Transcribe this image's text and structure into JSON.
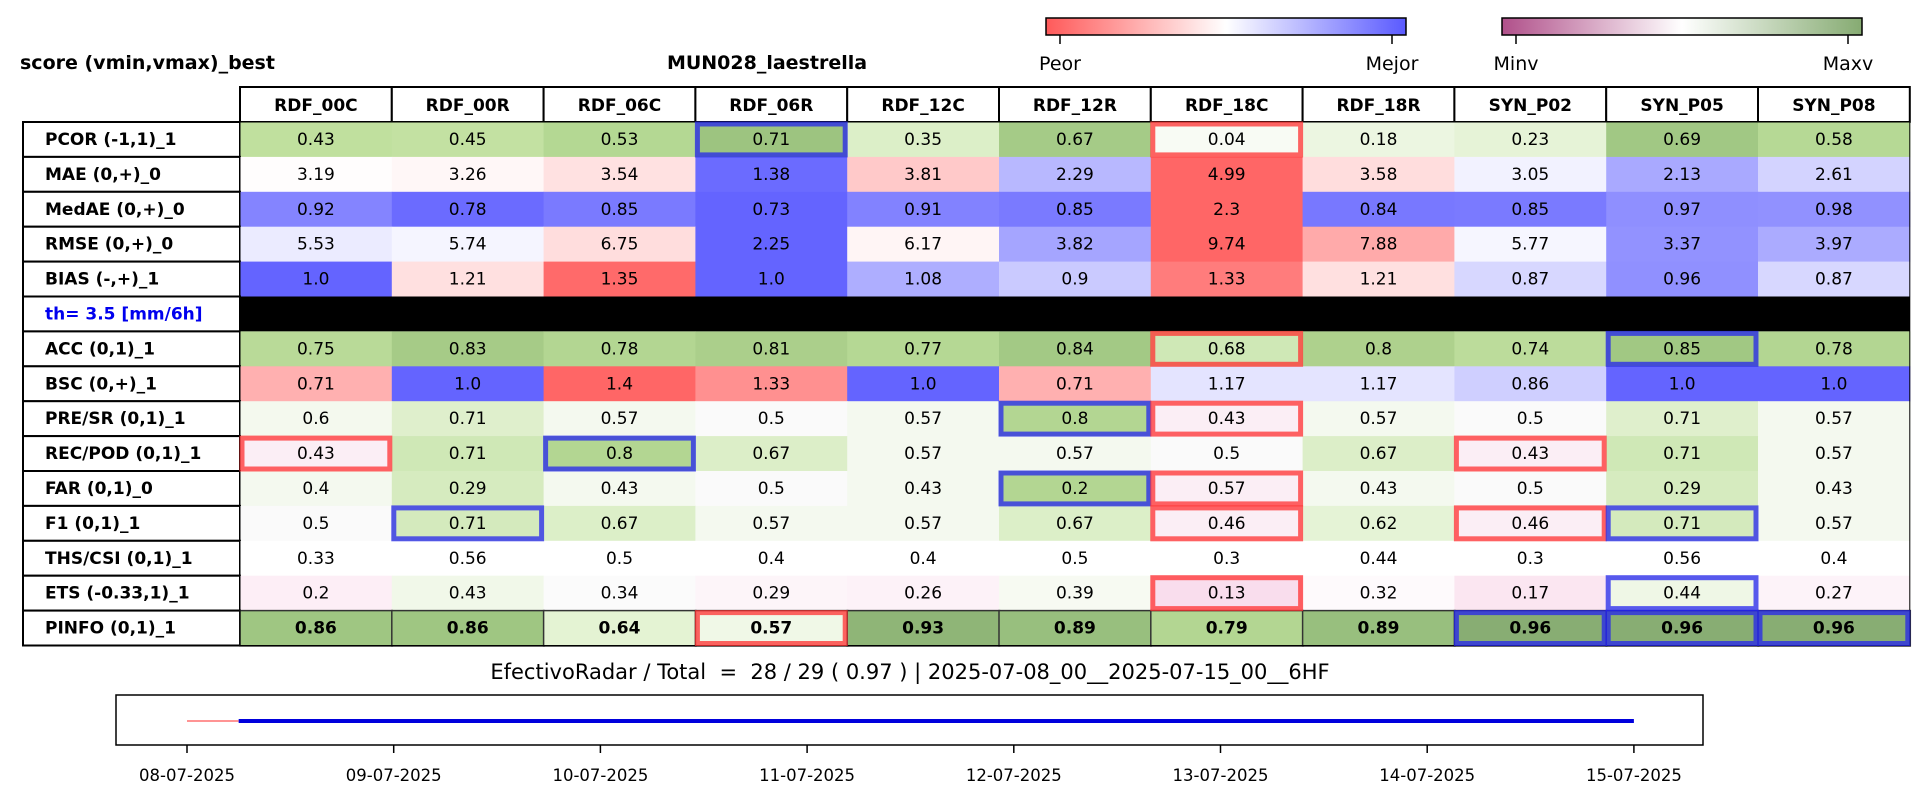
{
  "header": {
    "left_title": "score (vmin,vmax)_best",
    "center_title": "MUN028_laestrella"
  },
  "colorbar_score": {
    "low_label": "Peor",
    "high_label": "Mejor",
    "colors": [
      "#ff5a5a",
      "#ffffff",
      "#5a5aff"
    ]
  },
  "colorbar_minmax": {
    "low_label": "Minv",
    "high_label": "Maxv",
    "colors": [
      "#b0508a",
      "#ffffff",
      "#86ab72"
    ]
  },
  "chart_data": {
    "type": "table",
    "columns": [
      "RDF_00C",
      "RDF_00R",
      "RDF_06C",
      "RDF_06R",
      "RDF_12C",
      "RDF_12R",
      "RDF_18C",
      "RDF_18R",
      "SYN_P02",
      "SYN_P05",
      "SYN_P08"
    ],
    "rows": [
      {
        "label": "PCOR (-1,1)_1",
        "values": [
          "0.43",
          "0.45",
          "0.53",
          "0.71",
          "0.35",
          "0.67",
          "0.04",
          "0.18",
          "0.23",
          "0.69",
          "0.58"
        ],
        "colors": [
          "#c0e09e",
          "#c3e1a2",
          "#b4d893",
          "#9dc480",
          "#dcefc8",
          "#a5cb87",
          "#f8fbf4",
          "#ecf6e1",
          "#e6f3d7",
          "#a1c884",
          "#b6d995"
        ],
        "highlights": [
          {
            "col": 3,
            "color": "blue"
          },
          {
            "col": 6,
            "color": "red"
          }
        ]
      },
      {
        "label": "MAE (0,+)_0",
        "values": [
          "3.19",
          "3.26",
          "3.54",
          "1.38",
          "3.81",
          "2.29",
          "4.99",
          "3.58",
          "3.05",
          "2.13",
          "2.61"
        ],
        "colors": [
          "#fffdfd",
          "#fff7f7",
          "#ffe1e1",
          "#6b6bff",
          "#ffc9c9",
          "#b8b8ff",
          "#ff6666",
          "#ffdddd",
          "#f2f2ff",
          "#a9a9ff",
          "#d3d3ff"
        ],
        "highlights": []
      },
      {
        "label": "MedAE (0,+)_0",
        "values": [
          "0.92",
          "0.78",
          "0.85",
          "0.73",
          "0.91",
          "0.85",
          "2.3",
          "0.84",
          "0.85",
          "0.97",
          "0.98"
        ],
        "colors": [
          "#8484ff",
          "#6b6bff",
          "#7a7aff",
          "#6464ff",
          "#8282ff",
          "#7a7aff",
          "#ff6666",
          "#7878ff",
          "#7a7aff",
          "#8f8fff",
          "#9191ff"
        ],
        "highlights": []
      },
      {
        "label": "RMSE (0,+)_0",
        "values": [
          "5.53",
          "5.74",
          "6.75",
          "2.25",
          "6.17",
          "3.82",
          "9.74",
          "7.88",
          "5.77",
          "3.37",
          "3.97"
        ],
        "colors": [
          "#ebebff",
          "#f5f5ff",
          "#ffdddd",
          "#6464ff",
          "#fff5f5",
          "#a5a5ff",
          "#ff6666",
          "#ffaaaa",
          "#f6f6ff",
          "#9292ff",
          "#ababff"
        ],
        "highlights": []
      },
      {
        "label": "BIAS (-,+)_1",
        "values": [
          "1.0",
          "1.21",
          "1.35",
          "1.0",
          "1.08",
          "0.9",
          "1.33",
          "1.21",
          "0.87",
          "0.96",
          "0.87"
        ],
        "colors": [
          "#6464ff",
          "#ffe0e0",
          "#ff6a6a",
          "#6464ff",
          "#aeaeff",
          "#cacaff",
          "#ff7c7c",
          "#ffe0e0",
          "#d7d7ff",
          "#9090ff",
          "#d7d7ff"
        ],
        "highlights": []
      },
      {
        "label": "th= 3.5 [mm/6h]",
        "separator": true,
        "values": [],
        "colors": [],
        "highlights": []
      },
      {
        "label": "ACC (0,1)_1",
        "values": [
          "0.75",
          "0.83",
          "0.78",
          "0.81",
          "0.77",
          "0.84",
          "0.68",
          "0.8",
          "0.74",
          "0.85",
          "0.78"
        ],
        "colors": [
          "#b9da98",
          "#a6cb87",
          "#b3d692",
          "#abcf8b",
          "#b5d894",
          "#a3c985",
          "#cfe8b6",
          "#aed18d",
          "#bcdc9b",
          "#a1c883",
          "#b3d692"
        ],
        "highlights": [
          {
            "col": 6,
            "color": "red"
          },
          {
            "col": 9,
            "color": "blue"
          }
        ]
      },
      {
        "label": "BSC (0,+)_1",
        "values": [
          "0.71",
          "1.0",
          "1.4",
          "1.33",
          "1.0",
          "0.71",
          "1.17",
          "1.17",
          "0.86",
          "1.0",
          "1.0"
        ],
        "colors": [
          "#ffb0b0",
          "#6464ff",
          "#ff6666",
          "#ff9090",
          "#6464ff",
          "#ffb0b0",
          "#e4e4ff",
          "#e4e4ff",
          "#cfcfff",
          "#6464ff",
          "#6464ff"
        ],
        "highlights": []
      },
      {
        "label": "PRE/SR (0,1)_1",
        "values": [
          "0.6",
          "0.71",
          "0.57",
          "0.5",
          "0.57",
          "0.8",
          "0.43",
          "0.57",
          "0.5",
          "0.71",
          "0.57"
        ],
        "colors": [
          "#f4f9ee",
          "#dfefcc",
          "#f4f9ef",
          "#fafafa",
          "#f4f9ef",
          "#b3d692",
          "#fbeef5",
          "#f4f9ef",
          "#fafafa",
          "#dfefcc",
          "#f4f9ef"
        ],
        "highlights": [
          {
            "col": 5,
            "color": "blue"
          },
          {
            "col": 6,
            "color": "red"
          }
        ]
      },
      {
        "label": "REC/POD (0,1)_1",
        "values": [
          "0.43",
          "0.71",
          "0.8",
          "0.67",
          "0.57",
          "0.57",
          "0.5",
          "0.67",
          "0.43",
          "0.71",
          "0.57"
        ],
        "colors": [
          "#fbeef5",
          "#cfe8b6",
          "#b3d692",
          "#dceec8",
          "#f4f9ef",
          "#f4f9ef",
          "#fafafa",
          "#dceec8",
          "#fbeef5",
          "#cfe8b6",
          "#f4f9ef"
        ],
        "highlights": [
          {
            "col": 0,
            "color": "red"
          },
          {
            "col": 2,
            "color": "blue"
          },
          {
            "col": 8,
            "color": "red"
          }
        ]
      },
      {
        "label": "FAR (0,1)_0",
        "values": [
          "0.4",
          "0.29",
          "0.43",
          "0.5",
          "0.43",
          "0.2",
          "0.57",
          "0.43",
          "0.5",
          "0.29",
          "0.43"
        ],
        "colors": [
          "#f4f9ef",
          "#d6ebbf",
          "#f4f9ef",
          "#fafafa",
          "#f4f9ef",
          "#b3d692",
          "#fbeef5",
          "#f4f9ef",
          "#fafafa",
          "#d6ebbf",
          "#f4f9ef"
        ],
        "highlights": [
          {
            "col": 5,
            "color": "blue"
          },
          {
            "col": 6,
            "color": "red"
          }
        ]
      },
      {
        "label": "F1 (0,1)_1",
        "values": [
          "0.5",
          "0.71",
          "0.67",
          "0.57",
          "0.57",
          "0.67",
          "0.46",
          "0.62",
          "0.46",
          "0.71",
          "0.57"
        ],
        "colors": [
          "#fafafa",
          "#d4eabd",
          "#dcefc8",
          "#f4f9ef",
          "#f4f9ef",
          "#dcefc8",
          "#fbeef5",
          "#e5f3d6",
          "#fbeef5",
          "#d4eabd",
          "#f4f9ef"
        ],
        "highlights": [
          {
            "col": 1,
            "color": "blue"
          },
          {
            "col": 6,
            "color": "red"
          },
          {
            "col": 8,
            "color": "red"
          },
          {
            "col": 9,
            "color": "blue"
          }
        ]
      },
      {
        "label": "THS/CSI (0,1)_1",
        "values": [
          "0.33",
          "0.56",
          "0.5",
          "0.4",
          "0.4",
          "0.5",
          "0.3",
          "0.44",
          "0.3",
          "0.56",
          "0.4"
        ],
        "colors": [
          "#ffffff",
          "#ffffff",
          "#ffffff",
          "#ffffff",
          "#ffffff",
          "#ffffff",
          "#ffffff",
          "#ffffff",
          "#ffffff",
          "#ffffff",
          "#ffffff"
        ],
        "highlights": []
      },
      {
        "label": "ETS (-0.33,1)_1",
        "values": [
          "0.2",
          "0.43",
          "0.34",
          "0.29",
          "0.26",
          "0.39",
          "0.13",
          "0.32",
          "0.17",
          "0.44",
          "0.27"
        ],
        "colors": [
          "#fdeef6",
          "#f1f8e9",
          "#fbfbfb",
          "#fdf5f9",
          "#fdf2f8",
          "#f7faf2",
          "#f9dded",
          "#fefafc",
          "#fbe6f1",
          "#eff7e6",
          "#fdf3f9"
        ],
        "highlights": [
          {
            "col": 6,
            "color": "red"
          },
          {
            "col": 9,
            "color": "blue"
          }
        ]
      },
      {
        "label": "PINFO (0,1)_1",
        "bold": true,
        "values": [
          "0.86",
          "0.86",
          "0.64",
          "0.57",
          "0.93",
          "0.89",
          "0.79",
          "0.89",
          "0.96",
          "0.96",
          "0.96"
        ],
        "colors": [
          "#9fc682",
          "#9fc682",
          "#e4f3d3",
          "#f0f8e7",
          "#8fb577",
          "#98bf7e",
          "#b3d692",
          "#98bf7e",
          "#88ad73",
          "#88ad73",
          "#88ad73"
        ],
        "highlights": [
          {
            "col": 3,
            "color": "red"
          },
          {
            "col": 8,
            "color": "blue"
          },
          {
            "col": 9,
            "color": "blue"
          },
          {
            "col": 10,
            "color": "blue"
          }
        ]
      }
    ],
    "footer_text": "EfectivoRadar / Total  =  28 / 29 ( 0.97 ) | 2025-07-08_00__2025-07-15_00__6HF",
    "timeline": {
      "x_ticks": [
        "08-07-2025",
        "09-07-2025",
        "10-07-2025",
        "11-07-2025",
        "12-07-2025",
        "13-07-2025",
        "14-07-2025",
        "15-07-2025"
      ],
      "x_start_day": 0,
      "segments": [
        {
          "from": 0.0,
          "to": 0.25,
          "color": "#ff5555",
          "width": 1.2
        },
        {
          "from": 0.25,
          "to": 7.0,
          "color": "#0000dd",
          "width": 4
        }
      ]
    }
  }
}
